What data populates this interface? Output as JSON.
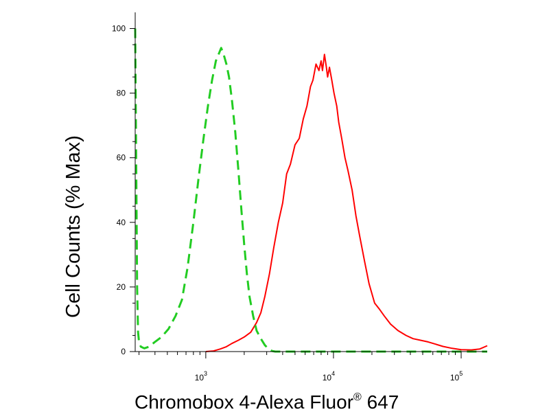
{
  "chart_data": {
    "type": "line",
    "title": "",
    "xlabel": "Chromobox 4-Alexa Fluor",
    "xlabel_superscript": "®",
    "xlabel_suffix": " 647",
    "ylabel": "Cell Counts (% Max)",
    "x_scale": "log",
    "xlim": [
      280,
      160000
    ],
    "ylim": [
      0,
      105
    ],
    "grid": false,
    "legend": "none",
    "y_ticks": [
      0,
      20,
      40,
      60,
      80,
      100
    ],
    "x_ticks": [
      {
        "value": 1000,
        "base": "10",
        "exp": "3"
      },
      {
        "value": 10000,
        "base": "10",
        "exp": "4"
      },
      {
        "value": 100000,
        "base": "10",
        "exp": "5"
      }
    ],
    "series": [
      {
        "color": "#ff0000",
        "style": "solid",
        "x": [
          1000,
          1150,
          1300,
          1450,
          1600,
          1800,
          2000,
          2250,
          2500,
          2700,
          2900,
          3150,
          3400,
          3700,
          4000,
          4300,
          4600,
          5000,
          5400,
          5800,
          6200,
          6600,
          6900,
          7300,
          7700,
          8000,
          8200,
          8500,
          8800,
          9000,
          9300,
          9700,
          10100,
          10600,
          11000,
          11600,
          12300,
          13000,
          14000,
          15000,
          16000,
          17500,
          19000,
          21000,
          23000,
          25000,
          28000,
          32000,
          37000,
          42000,
          48000,
          55000,
          63000,
          72000,
          85000,
          100000,
          120000,
          140000,
          160000
        ],
        "y": [
          0,
          0.2,
          0.8,
          1.5,
          2.5,
          3.5,
          4.5,
          6,
          9,
          12,
          17,
          24,
          32,
          40,
          46,
          55,
          58,
          64,
          66,
          72,
          76,
          82,
          84,
          89,
          87,
          90,
          87,
          92,
          88,
          85,
          88,
          84,
          80,
          76,
          71,
          66,
          60,
          56,
          50,
          42,
          36,
          28,
          21,
          15,
          13,
          11,
          8.5,
          6.5,
          5,
          4,
          3.5,
          3,
          2.3,
          1.6,
          1.0,
          0.6,
          0.5,
          0.8,
          1.8
        ]
      },
      {
        "color": "#22cc22",
        "style": "dashed",
        "x": [
          280,
          285,
          290,
          295,
          300,
          310,
          330,
          360,
          400,
          450,
          510,
          580,
          650,
          720,
          800,
          880,
          960,
          1040,
          1120,
          1200,
          1260,
          1320,
          1380,
          1450,
          1520,
          1600,
          1700,
          1800,
          1900,
          2000,
          2100,
          2200,
          2350,
          2500,
          2700,
          2900,
          3100,
          3300,
          3500,
          3800,
          4200,
          5000,
          7000,
          10000,
          20000,
          50000,
          100000,
          160000
        ],
        "y": [
          100,
          60,
          20,
          6,
          3,
          1.5,
          1,
          1.5,
          3,
          4.5,
          7,
          11,
          16,
          26,
          40,
          54,
          66,
          76,
          84,
          90,
          92,
          94,
          92,
          89,
          85,
          78,
          68,
          56,
          44,
          33,
          24,
          17,
          11,
          6.5,
          4,
          2,
          0.8,
          0.2,
          0,
          0,
          0,
          0,
          0,
          0,
          0,
          0,
          0,
          0
        ]
      }
    ]
  }
}
